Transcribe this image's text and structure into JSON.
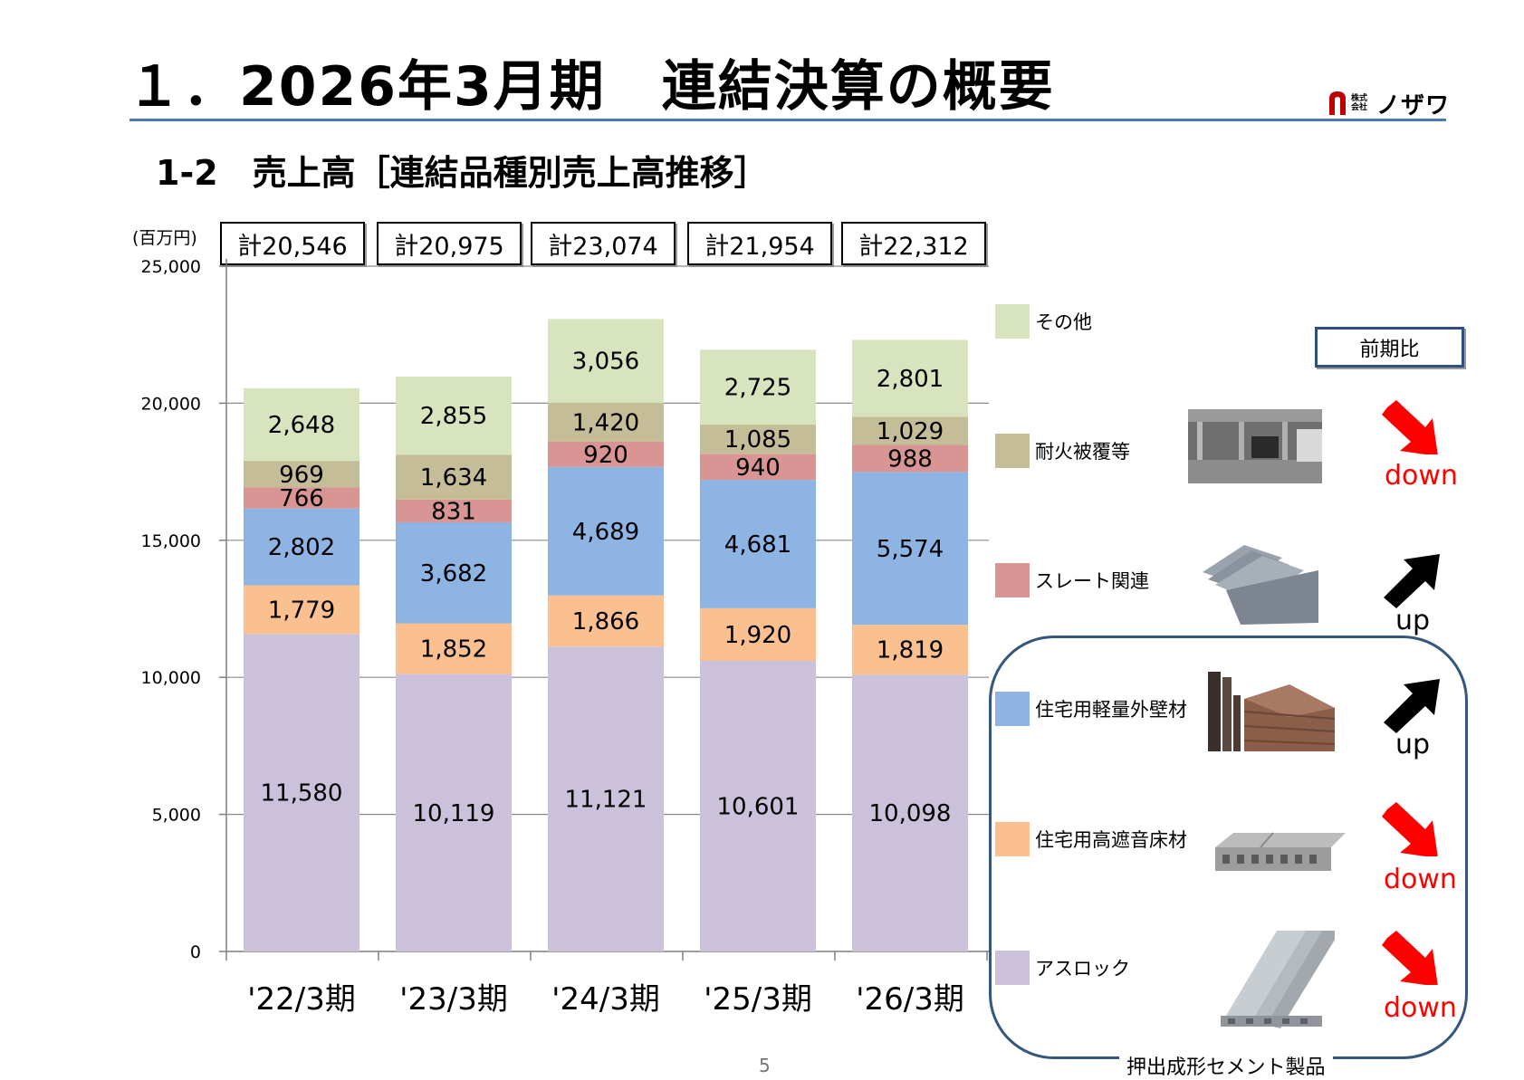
{
  "header": {
    "title": "１．2026年3月期　連結決算の概要",
    "subtitle": "1-2　売上高［連結品種別売上高推移］",
    "logo_small_text": "株式会社",
    "logo_name": "ノザワ"
  },
  "unit_label": "(百万円)",
  "totals": [
    "計20,546",
    "計20,975",
    "計23,074",
    "計21,954",
    "計22,312"
  ],
  "legend": {
    "yoy_label": "前期比",
    "items": [
      {
        "label": "その他",
        "color": "#d7e4bd",
        "photo": "",
        "trend": ""
      },
      {
        "label": "耐火被覆等",
        "color": "#c4bd97",
        "photo": "fireproof-coating-photo",
        "trend": "down"
      },
      {
        "label": "スレート関連",
        "color": "#d99594",
        "photo": "slate-panel-photo",
        "trend": "up"
      },
      {
        "label": "住宅用軽量外壁材",
        "color": "#8eb4e3",
        "photo": "exterior-wall-panel-photo",
        "trend": "up"
      },
      {
        "label": "住宅用高遮音床材",
        "color": "#fac090",
        "photo": "floor-panel-photo",
        "trend": "down"
      },
      {
        "label": "アスロック",
        "color": "#ccc1da",
        "photo": "asloc-panel-photo",
        "trend": "down"
      }
    ],
    "group_caption": "押出成形セメント製品"
  },
  "page_number": "5",
  "chart_data": {
    "type": "bar",
    "stacked": true,
    "categories": [
      "'22/3期",
      "'23/3期",
      "'24/3期",
      "'25/3期",
      "'26/3期"
    ],
    "ylim": [
      0,
      25000
    ],
    "yticks": [
      "0",
      "5,000",
      "10,000",
      "15,000",
      "20,000",
      "25,000"
    ],
    "ylabel": "(百万円)",
    "grid": true,
    "legend_position": "right",
    "series": [
      {
        "name": "アスロック",
        "color": "#ccc1da",
        "values": [
          11580,
          10119,
          11121,
          10601,
          10098
        ],
        "labels": [
          "11,580",
          "10,119",
          "11,121",
          "10,601",
          "10,098"
        ]
      },
      {
        "name": "住宅用高遮音床材",
        "color": "#fac090",
        "values": [
          1779,
          1852,
          1866,
          1920,
          1819
        ],
        "labels": [
          "1,779",
          "1,852",
          "1,866",
          "1,920",
          "1,819"
        ]
      },
      {
        "name": "住宅用軽量外壁材",
        "color": "#8eb4e3",
        "values": [
          2802,
          3682,
          4689,
          4681,
          5574
        ],
        "labels": [
          "2,802",
          "3,682",
          "4,689",
          "4,681",
          "5,574"
        ]
      },
      {
        "name": "スレート関連",
        "color": "#d99594",
        "values": [
          766,
          831,
          920,
          940,
          988
        ],
        "labels": [
          "766",
          "831",
          "920",
          "940",
          "988"
        ]
      },
      {
        "name": "耐火被覆等",
        "color": "#c4bd97",
        "values": [
          969,
          1634,
          1420,
          1085,
          1029
        ],
        "labels": [
          "969",
          "1,634",
          "1,420",
          "1,085",
          "1,029"
        ]
      },
      {
        "name": "その他",
        "color": "#d7e4bd",
        "values": [
          2648,
          2855,
          3056,
          2725,
          2801
        ],
        "labels": [
          "2,648",
          "2,855",
          "3,056",
          "2,725",
          "2,801"
        ]
      }
    ]
  }
}
